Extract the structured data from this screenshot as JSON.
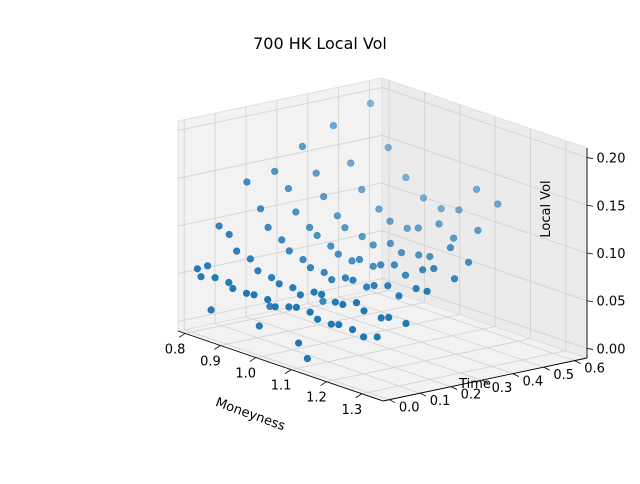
{
  "chart_data": {
    "type": "scatter",
    "projection": "3d",
    "title": "700 HK Local Vol",
    "xlabel": "Moneyness",
    "ylabel": "Time",
    "zlabel": "Local Vol",
    "xlim": [
      0.78,
      1.36
    ],
    "ylim": [
      -0.02,
      0.64
    ],
    "zlim": [
      -0.01,
      0.21
    ],
    "x_ticks": [
      0.8,
      0.9,
      1.0,
      1.1,
      1.2,
      1.3
    ],
    "x_tick_labels": [
      "0.8",
      "0.9",
      "1.0",
      "1.1",
      "1.2",
      "1.3"
    ],
    "y_ticks": [
      0.0,
      0.1,
      0.2,
      0.3,
      0.4,
      0.5,
      0.6
    ],
    "y_tick_labels": [
      "0.0",
      "0.1",
      "0.2",
      "0.3",
      "0.4",
      "0.5",
      "0.6"
    ],
    "z_ticks": [
      0.0,
      0.05,
      0.1,
      0.15,
      0.2
    ],
    "z_tick_labels": [
      "0.00",
      "0.05",
      "0.10",
      "0.15",
      "0.20"
    ],
    "grid": true,
    "legend": "none",
    "marker_color": "#1f77b4",
    "points": [
      {
        "x": 0.8,
        "y": 0.02,
        "z": 0.055
      },
      {
        "x": 0.81,
        "y": 0.02,
        "z": 0.048
      },
      {
        "x": 0.82,
        "y": 0.03,
        "z": 0.06
      },
      {
        "x": 0.85,
        "y": 0.02,
        "z": 0.052
      },
      {
        "x": 0.88,
        "y": 0.03,
        "z": 0.05
      },
      {
        "x": 0.9,
        "y": 0.02,
        "z": 0.047
      },
      {
        "x": 0.93,
        "y": 0.03,
        "z": 0.045
      },
      {
        "x": 0.96,
        "y": 0.02,
        "z": 0.048
      },
      {
        "x": 0.99,
        "y": 0.03,
        "z": 0.046
      },
      {
        "x": 1.02,
        "y": 0.02,
        "z": 0.043
      },
      {
        "x": 1.05,
        "y": 0.03,
        "z": 0.046
      },
      {
        "x": 1.08,
        "y": 0.02,
        "z": 0.05
      },
      {
        "x": 1.11,
        "y": 0.03,
        "z": 0.048
      },
      {
        "x": 1.14,
        "y": 0.02,
        "z": 0.045
      },
      {
        "x": 1.17,
        "y": 0.03,
        "z": 0.043
      },
      {
        "x": 1.2,
        "y": 0.02,
        "z": 0.047
      },
      {
        "x": 1.23,
        "y": 0.03,
        "z": 0.045
      },
      {
        "x": 1.27,
        "y": 0.02,
        "z": 0.043
      },
      {
        "x": 1.3,
        "y": 0.03,
        "z": 0.046
      },
      {
        "x": 0.8,
        "y": 0.09,
        "z": 0.095
      },
      {
        "x": 0.82,
        "y": 0.1,
        "z": 0.088
      },
      {
        "x": 0.85,
        "y": 0.09,
        "z": 0.075
      },
      {
        "x": 0.88,
        "y": 0.1,
        "z": 0.07
      },
      {
        "x": 0.91,
        "y": 0.09,
        "z": 0.062
      },
      {
        "x": 0.94,
        "y": 0.1,
        "z": 0.058
      },
      {
        "x": 0.97,
        "y": 0.09,
        "z": 0.056
      },
      {
        "x": 1.0,
        "y": 0.1,
        "z": 0.055
      },
      {
        "x": 1.03,
        "y": 0.09,
        "z": 0.052
      },
      {
        "x": 1.06,
        "y": 0.1,
        "z": 0.058
      },
      {
        "x": 1.09,
        "y": 0.09,
        "z": 0.06
      },
      {
        "x": 1.12,
        "y": 0.1,
        "z": 0.055
      },
      {
        "x": 1.15,
        "y": 0.09,
        "z": 0.057
      },
      {
        "x": 1.18,
        "y": 0.1,
        "z": 0.062
      },
      {
        "x": 1.21,
        "y": 0.09,
        "z": 0.058
      },
      {
        "x": 1.25,
        "y": 0.1,
        "z": 0.055
      },
      {
        "x": 1.28,
        "y": 0.09,
        "z": 0.06
      },
      {
        "x": 1.32,
        "y": 0.1,
        "z": 0.058
      },
      {
        "x": 0.8,
        "y": 0.18,
        "z": 0.135
      },
      {
        "x": 0.83,
        "y": 0.19,
        "z": 0.11
      },
      {
        "x": 0.86,
        "y": 0.18,
        "z": 0.095
      },
      {
        "x": 0.89,
        "y": 0.19,
        "z": 0.085
      },
      {
        "x": 0.92,
        "y": 0.18,
        "z": 0.078
      },
      {
        "x": 0.95,
        "y": 0.19,
        "z": 0.072
      },
      {
        "x": 0.98,
        "y": 0.18,
        "z": 0.068
      },
      {
        "x": 1.01,
        "y": 0.19,
        "z": 0.066
      },
      {
        "x": 1.04,
        "y": 0.18,
        "z": 0.063
      },
      {
        "x": 1.07,
        "y": 0.19,
        "z": 0.068
      },
      {
        "x": 1.1,
        "y": 0.18,
        "z": 0.07
      },
      {
        "x": 1.13,
        "y": 0.19,
        "z": 0.066
      },
      {
        "x": 1.16,
        "y": 0.18,
        "z": 0.072
      },
      {
        "x": 1.19,
        "y": 0.19,
        "z": 0.075
      },
      {
        "x": 1.23,
        "y": 0.18,
        "z": 0.07
      },
      {
        "x": 1.27,
        "y": 0.19,
        "z": 0.082
      },
      {
        "x": 1.31,
        "y": 0.18,
        "z": 0.085
      },
      {
        "x": 0.8,
        "y": 0.27,
        "z": 0.14
      },
      {
        "x": 0.83,
        "y": 0.28,
        "z": 0.125
      },
      {
        "x": 0.86,
        "y": 0.27,
        "z": 0.105
      },
      {
        "x": 0.89,
        "y": 0.28,
        "z": 0.092
      },
      {
        "x": 0.92,
        "y": 0.27,
        "z": 0.088
      },
      {
        "x": 0.95,
        "y": 0.28,
        "z": 0.08
      },
      {
        "x": 0.98,
        "y": 0.27,
        "z": 0.076
      },
      {
        "x": 1.01,
        "y": 0.28,
        "z": 0.072
      },
      {
        "x": 1.04,
        "y": 0.27,
        "z": 0.078
      },
      {
        "x": 1.07,
        "y": 0.28,
        "z": 0.074
      },
      {
        "x": 1.1,
        "y": 0.27,
        "z": 0.08
      },
      {
        "x": 1.13,
        "y": 0.28,
        "z": 0.083
      },
      {
        "x": 1.17,
        "y": 0.27,
        "z": 0.078
      },
      {
        "x": 1.21,
        "y": 0.28,
        "z": 0.088
      },
      {
        "x": 1.25,
        "y": 0.27,
        "z": 0.095
      },
      {
        "x": 1.3,
        "y": 0.28,
        "z": 0.09
      },
      {
        "x": 0.8,
        "y": 0.36,
        "z": 0.16
      },
      {
        "x": 0.83,
        "y": 0.37,
        "z": 0.135
      },
      {
        "x": 0.86,
        "y": 0.36,
        "z": 0.115
      },
      {
        "x": 0.89,
        "y": 0.37,
        "z": 0.098
      },
      {
        "x": 0.92,
        "y": 0.36,
        "z": 0.09
      },
      {
        "x": 0.96,
        "y": 0.37,
        "z": 0.085
      },
      {
        "x": 1.0,
        "y": 0.36,
        "z": 0.082
      },
      {
        "x": 1.04,
        "y": 0.37,
        "z": 0.088
      },
      {
        "x": 1.08,
        "y": 0.36,
        "z": 0.084
      },
      {
        "x": 1.12,
        "y": 0.37,
        "z": 0.086
      },
      {
        "x": 1.16,
        "y": 0.36,
        "z": 0.09
      },
      {
        "x": 1.21,
        "y": 0.37,
        "z": 0.105
      },
      {
        "x": 1.27,
        "y": 0.36,
        "z": 0.098
      },
      {
        "x": 0.8,
        "y": 0.46,
        "z": 0.175
      },
      {
        "x": 0.84,
        "y": 0.47,
        "z": 0.14
      },
      {
        "x": 0.88,
        "y": 0.46,
        "z": 0.118
      },
      {
        "x": 0.92,
        "y": 0.47,
        "z": 0.102
      },
      {
        "x": 0.96,
        "y": 0.46,
        "z": 0.095
      },
      {
        "x": 1.0,
        "y": 0.47,
        "z": 0.092
      },
      {
        "x": 1.04,
        "y": 0.46,
        "z": 0.098
      },
      {
        "x": 1.09,
        "y": 0.47,
        "z": 0.108
      },
      {
        "x": 1.14,
        "y": 0.46,
        "z": 0.1
      },
      {
        "x": 1.2,
        "y": 0.47,
        "z": 0.115
      },
      {
        "x": 0.8,
        "y": 0.58,
        "z": 0.19
      },
      {
        "x": 0.85,
        "y": 0.58,
        "z": 0.15
      },
      {
        "x": 0.9,
        "y": 0.58,
        "z": 0.125
      },
      {
        "x": 0.95,
        "y": 0.58,
        "z": 0.11
      },
      {
        "x": 1.0,
        "y": 0.58,
        "z": 0.105
      },
      {
        "x": 1.05,
        "y": 0.58,
        "z": 0.11
      },
      {
        "x": 1.1,
        "y": 0.58,
        "z": 0.138
      },
      {
        "x": 1.16,
        "y": 0.58,
        "z": 0.13
      },
      {
        "x": 0.83,
        "y": 0.03,
        "z": 0.015
      },
      {
        "x": 0.94,
        "y": 0.06,
        "z": 0.01
      },
      {
        "x": 1.06,
        "y": 0.05,
        "z": 0.008
      },
      {
        "x": 1.12,
        "y": 0.01,
        "z": 0.002
      },
      {
        "x": 0.9,
        "y": 0.14,
        "z": 0.02
      },
      {
        "x": 0.98,
        "y": 0.22,
        "z": 0.03
      }
    ]
  }
}
